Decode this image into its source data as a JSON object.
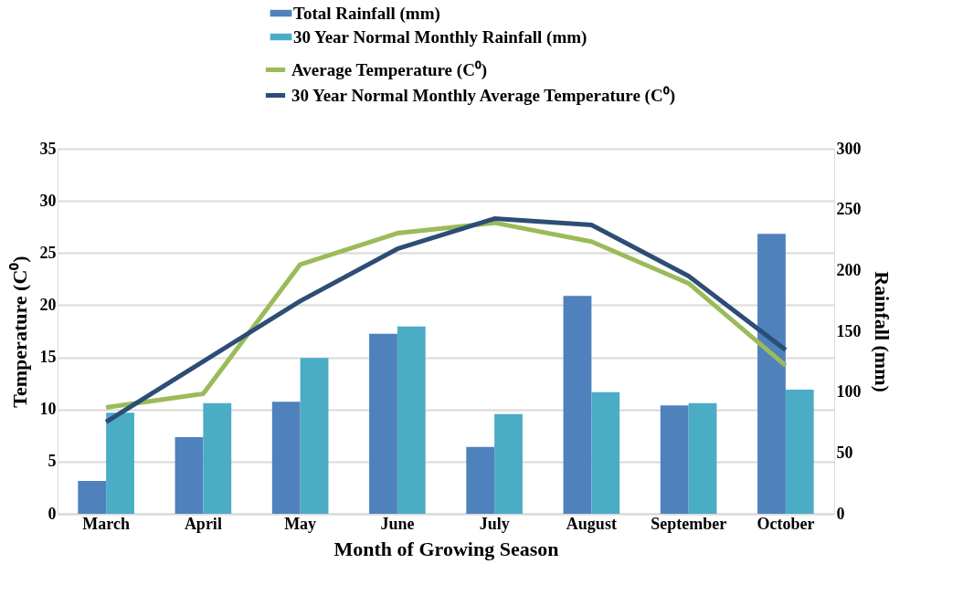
{
  "chart_data": {
    "type": "bar",
    "xlabel": "Month of Growing Season",
    "ylabel": "Temperature (C⁰)",
    "y2label": "Rainfall (mm)",
    "categories": [
      "March",
      "April",
      "May",
      "June",
      "July",
      "August",
      "September",
      "October"
    ],
    "series": [
      {
        "name": "Total Rainfall (mm)",
        "axis": "y2",
        "color": "#4f81bd",
        "values": [
          27,
          63,
          92,
          148,
          55,
          179,
          89,
          230
        ]
      },
      {
        "name": "30 Year Normal Monthly Rainfall (mm)",
        "axis": "y2",
        "color": "#4bacc6",
        "values": [
          83,
          91,
          128,
          154,
          82,
          100,
          91,
          102
        ]
      },
      {
        "name": "Average Temperature (C⁰)",
        "type": "line",
        "color": "#9bbb59",
        "values": [
          10.2,
          11.5,
          23.9,
          26.9,
          27.9,
          26.1,
          22.1,
          14.2
        ]
      },
      {
        "name": "30 Year Normal Monthly Average Temperature (C⁰)",
        "type": "line",
        "color": "#2c4d75",
        "values": [
          8.8,
          14.6,
          20.4,
          25.4,
          28.3,
          27.7,
          22.8,
          15.7
        ]
      }
    ],
    "ylim": [
      0,
      35
    ],
    "yticks": [
      0,
      5,
      10,
      15,
      20,
      25,
      30,
      35
    ],
    "y2lim": [
      0,
      300
    ],
    "y2ticks": [
      0,
      50,
      100,
      150,
      200,
      250,
      300
    ],
    "grid": "y",
    "legend": "top",
    "line_style": "solid",
    "marker": "none"
  }
}
